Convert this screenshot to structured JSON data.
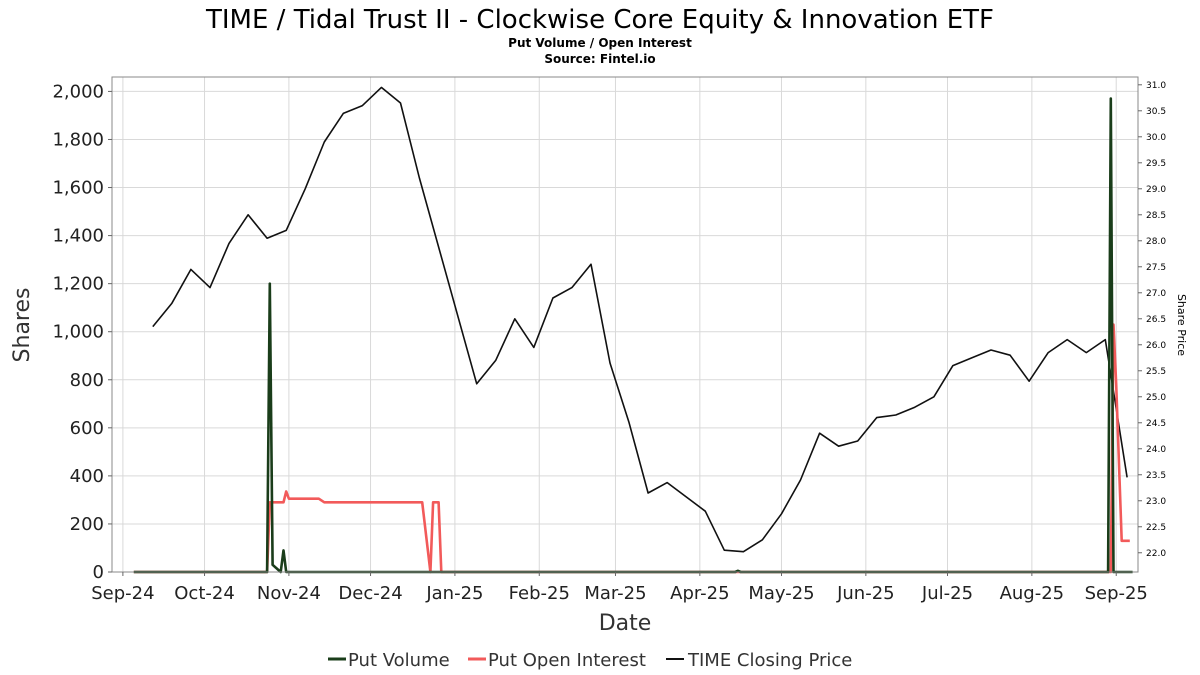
{
  "chart_data": {
    "type": "line",
    "title": "TIME / Tidal Trust II - Clockwise Core Equity & Innovation ETF",
    "subtitle": "Put Volume / Open Interest",
    "source": "Source: Fintel.io",
    "xlabel": "Date",
    "ylabel": "Shares",
    "y2label": "Share Price",
    "x_tick_labels": [
      "Sep-24",
      "Oct-24",
      "Nov-24",
      "Dec-24",
      "Jan-25",
      "Feb-25",
      "Mar-25",
      "Apr-25",
      "May-25",
      "Jun-25",
      "Jul-25",
      "Aug-25",
      "Sep-25"
    ],
    "x_tick_dates": [
      "2024-09-01",
      "2024-10-01",
      "2024-11-01",
      "2024-12-01",
      "2025-01-01",
      "2025-02-01",
      "2025-03-01",
      "2025-04-01",
      "2025-05-01",
      "2025-06-01",
      "2025-07-01",
      "2025-08-01",
      "2025-09-01"
    ],
    "xlim": [
      "2024-08-28",
      "2025-09-09"
    ],
    "ylim": [
      0,
      2060
    ],
    "y_ticks": [
      0,
      200,
      400,
      600,
      800,
      1000,
      1200,
      1400,
      1600,
      1800,
      2000
    ],
    "y_tick_labels": [
      "0",
      "200",
      "400",
      "600",
      "800",
      "1,000",
      "1,200",
      "1,400",
      "1,600",
      "1,800",
      "2,000"
    ],
    "y2lim": [
      21.63,
      31.15
    ],
    "y2_ticks": [
      22.0,
      22.5,
      23.0,
      23.5,
      24.0,
      24.5,
      25.0,
      25.5,
      26.0,
      26.5,
      27.0,
      27.5,
      28.0,
      28.5,
      29.0,
      29.5,
      30.0,
      30.5,
      31.0
    ],
    "y2_tick_labels": [
      "22.0",
      "22.5",
      "23.0",
      "23.5",
      "24.0",
      "24.5",
      "25.0",
      "25.5",
      "26.0",
      "26.5",
      "27.0",
      "27.5",
      "28.0",
      "28.5",
      "29.0",
      "29.5",
      "30.0",
      "30.5",
      "31.0"
    ],
    "grid": true,
    "legend_position": "bottom",
    "series": [
      {
        "name": "Put Volume",
        "axis": "left",
        "color": "#1a3d1a",
        "points": [
          [
            "2024-09-05",
            0
          ],
          [
            "2024-10-24",
            0
          ],
          [
            "2024-10-25",
            1200
          ],
          [
            "2024-10-26",
            30
          ],
          [
            "2024-10-29",
            0
          ],
          [
            "2024-10-30",
            90
          ],
          [
            "2024-10-31",
            0
          ],
          [
            "2025-04-14",
            0
          ],
          [
            "2025-04-15",
            5
          ],
          [
            "2025-04-16",
            0
          ],
          [
            "2025-08-29",
            0
          ],
          [
            "2025-08-30",
            1970
          ],
          [
            "2025-08-31",
            0
          ],
          [
            "2025-09-07",
            0
          ]
        ]
      },
      {
        "name": "Put Open Interest",
        "axis": "left",
        "color": "#f25a5a",
        "points": [
          [
            "2024-09-05",
            0
          ],
          [
            "2024-10-24",
            0
          ],
          [
            "2024-10-25",
            290
          ],
          [
            "2024-10-30",
            290
          ],
          [
            "2024-10-31",
            335
          ],
          [
            "2024-11-01",
            305
          ],
          [
            "2024-11-12",
            305
          ],
          [
            "2024-11-14",
            290
          ],
          [
            "2024-12-20",
            290
          ],
          [
            "2024-12-23",
            0
          ],
          [
            "2024-12-24",
            290
          ],
          [
            "2024-12-26",
            290
          ],
          [
            "2024-12-27",
            0
          ],
          [
            "2025-08-30",
            0
          ],
          [
            "2025-08-31",
            1030
          ],
          [
            "2025-09-01",
            780
          ],
          [
            "2025-09-03",
            130
          ],
          [
            "2025-09-06",
            130
          ]
        ]
      },
      {
        "name": "TIME Closing Price",
        "axis": "right",
        "color": "#111111",
        "points": [
          [
            "2024-09-12",
            26.35
          ],
          [
            "2024-09-19",
            26.8
          ],
          [
            "2024-09-26",
            27.45
          ],
          [
            "2024-10-03",
            27.1
          ],
          [
            "2024-10-10",
            27.95
          ],
          [
            "2024-10-17",
            28.5
          ],
          [
            "2024-10-24",
            28.05
          ],
          [
            "2024-10-31",
            28.2
          ],
          [
            "2024-11-07",
            29.0
          ],
          [
            "2024-11-14",
            29.9
          ],
          [
            "2024-11-21",
            30.45
          ],
          [
            "2024-11-28",
            30.6
          ],
          [
            "2024-12-05",
            30.95
          ],
          [
            "2024-12-12",
            30.65
          ],
          [
            "2024-12-19",
            29.2
          ],
          [
            "2025-01-09",
            25.25
          ],
          [
            "2025-01-16",
            25.7
          ],
          [
            "2025-01-23",
            26.5
          ],
          [
            "2025-01-30",
            25.95
          ],
          [
            "2025-02-06",
            26.9
          ],
          [
            "2025-02-13",
            27.1
          ],
          [
            "2025-02-20",
            27.55
          ],
          [
            "2025-02-27",
            25.65
          ],
          [
            "2025-03-06",
            24.5
          ],
          [
            "2025-03-13",
            23.15
          ],
          [
            "2025-03-20",
            23.35
          ],
          [
            "2025-04-03",
            22.8
          ],
          [
            "2025-04-10",
            22.05
          ],
          [
            "2025-04-17",
            22.02
          ],
          [
            "2025-04-24",
            22.25
          ],
          [
            "2025-05-01",
            22.75
          ],
          [
            "2025-05-08",
            23.4
          ],
          [
            "2025-05-15",
            24.3
          ],
          [
            "2025-05-22",
            24.05
          ],
          [
            "2025-05-29",
            24.15
          ],
          [
            "2025-06-05",
            24.6
          ],
          [
            "2025-06-12",
            24.65
          ],
          [
            "2025-06-19",
            24.8
          ],
          [
            "2025-06-26",
            25.0
          ],
          [
            "2025-07-03",
            25.6
          ],
          [
            "2025-07-10",
            25.75
          ],
          [
            "2025-07-17",
            25.9
          ],
          [
            "2025-07-24",
            25.8
          ],
          [
            "2025-07-31",
            25.3
          ],
          [
            "2025-08-07",
            25.85
          ],
          [
            "2025-08-14",
            26.1
          ],
          [
            "2025-08-21",
            25.85
          ],
          [
            "2025-08-28",
            26.1
          ],
          [
            "2025-09-05",
            23.45
          ]
        ]
      }
    ]
  }
}
